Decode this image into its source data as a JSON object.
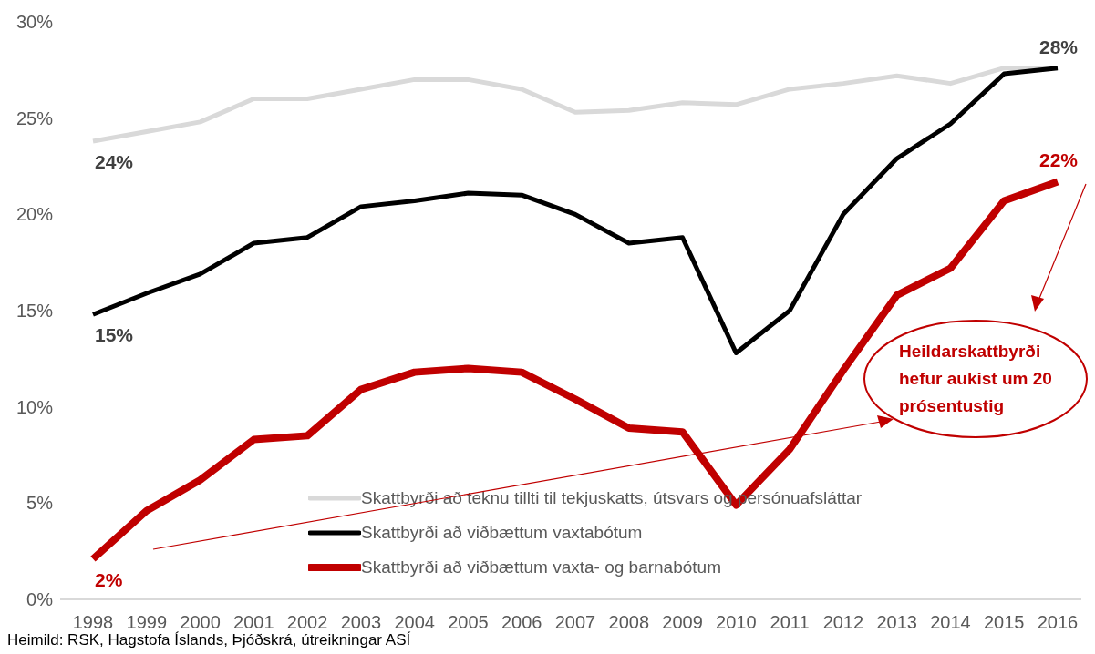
{
  "chart_data": {
    "type": "line",
    "categories": [
      "1998",
      "1999",
      "2000",
      "2001",
      "2002",
      "2003",
      "2004",
      "2005",
      "2006",
      "2007",
      "2008",
      "2009",
      "2010",
      "2011",
      "2012",
      "2013",
      "2014",
      "2015",
      "2016"
    ],
    "series": [
      {
        "name": "Skattbyrði að teknu tillti til tekjuskatts, útsvars og persónuafsláttar",
        "color": "#d9d9d9",
        "values": [
          23.8,
          24.3,
          24.8,
          26.0,
          26.0,
          26.5,
          27.0,
          27.0,
          26.5,
          25.3,
          25.4,
          25.8,
          25.7,
          26.5,
          26.8,
          27.2,
          26.8,
          27.6,
          27.6
        ],
        "value_labels": [
          "24%",
          null,
          null,
          null,
          null,
          null,
          null,
          null,
          null,
          null,
          null,
          null,
          null,
          null,
          null,
          null,
          null,
          null,
          null
        ]
      },
      {
        "name": "Skattbyrði að viðbættum vaxtabótum",
        "color": "#000000",
        "values": [
          14.8,
          15.9,
          16.9,
          18.5,
          18.8,
          20.4,
          20.7,
          21.1,
          21.0,
          20.0,
          18.5,
          18.8,
          12.8,
          15.0,
          20.0,
          22.9,
          24.7,
          27.3,
          27.6
        ],
        "value_labels": [
          "15%",
          null,
          null,
          null,
          null,
          null,
          null,
          null,
          null,
          null,
          null,
          null,
          null,
          null,
          null,
          null,
          null,
          null,
          "28%"
        ]
      },
      {
        "name": "Skattbyrði að viðbættum vaxta- og barnabótum",
        "color": "#c00000",
        "values": [
          2.1,
          4.6,
          6.2,
          8.3,
          8.5,
          10.9,
          11.8,
          12.0,
          11.8,
          10.4,
          8.9,
          8.7,
          4.9,
          7.8,
          11.9,
          15.8,
          17.2,
          20.7,
          21.7
        ],
        "value_labels": [
          "2%",
          null,
          null,
          null,
          null,
          null,
          null,
          null,
          null,
          null,
          null,
          null,
          null,
          null,
          null,
          null,
          null,
          null,
          "22%"
        ]
      }
    ],
    "ylim": [
      0,
      30
    ],
    "yticks": [
      {
        "value": 0,
        "label": "0%"
      },
      {
        "value": 5,
        "label": "5%"
      },
      {
        "value": 10,
        "label": "10%"
      },
      {
        "value": 15,
        "label": "15%"
      },
      {
        "value": 20,
        "label": "20%"
      },
      {
        "value": 25,
        "label": "25%"
      },
      {
        "value": 30,
        "label": "30%"
      }
    ],
    "grid": false,
    "legend": "bottom",
    "marker": "none",
    "line_style": "solid",
    "annotations": [
      "Heildarskattbyrði hefur aukist um 20 prósentustig",
      "Heimild: RSK, Hagstofa Íslands, Þjóðskrá, útreikningar ASÍ"
    ]
  }
}
